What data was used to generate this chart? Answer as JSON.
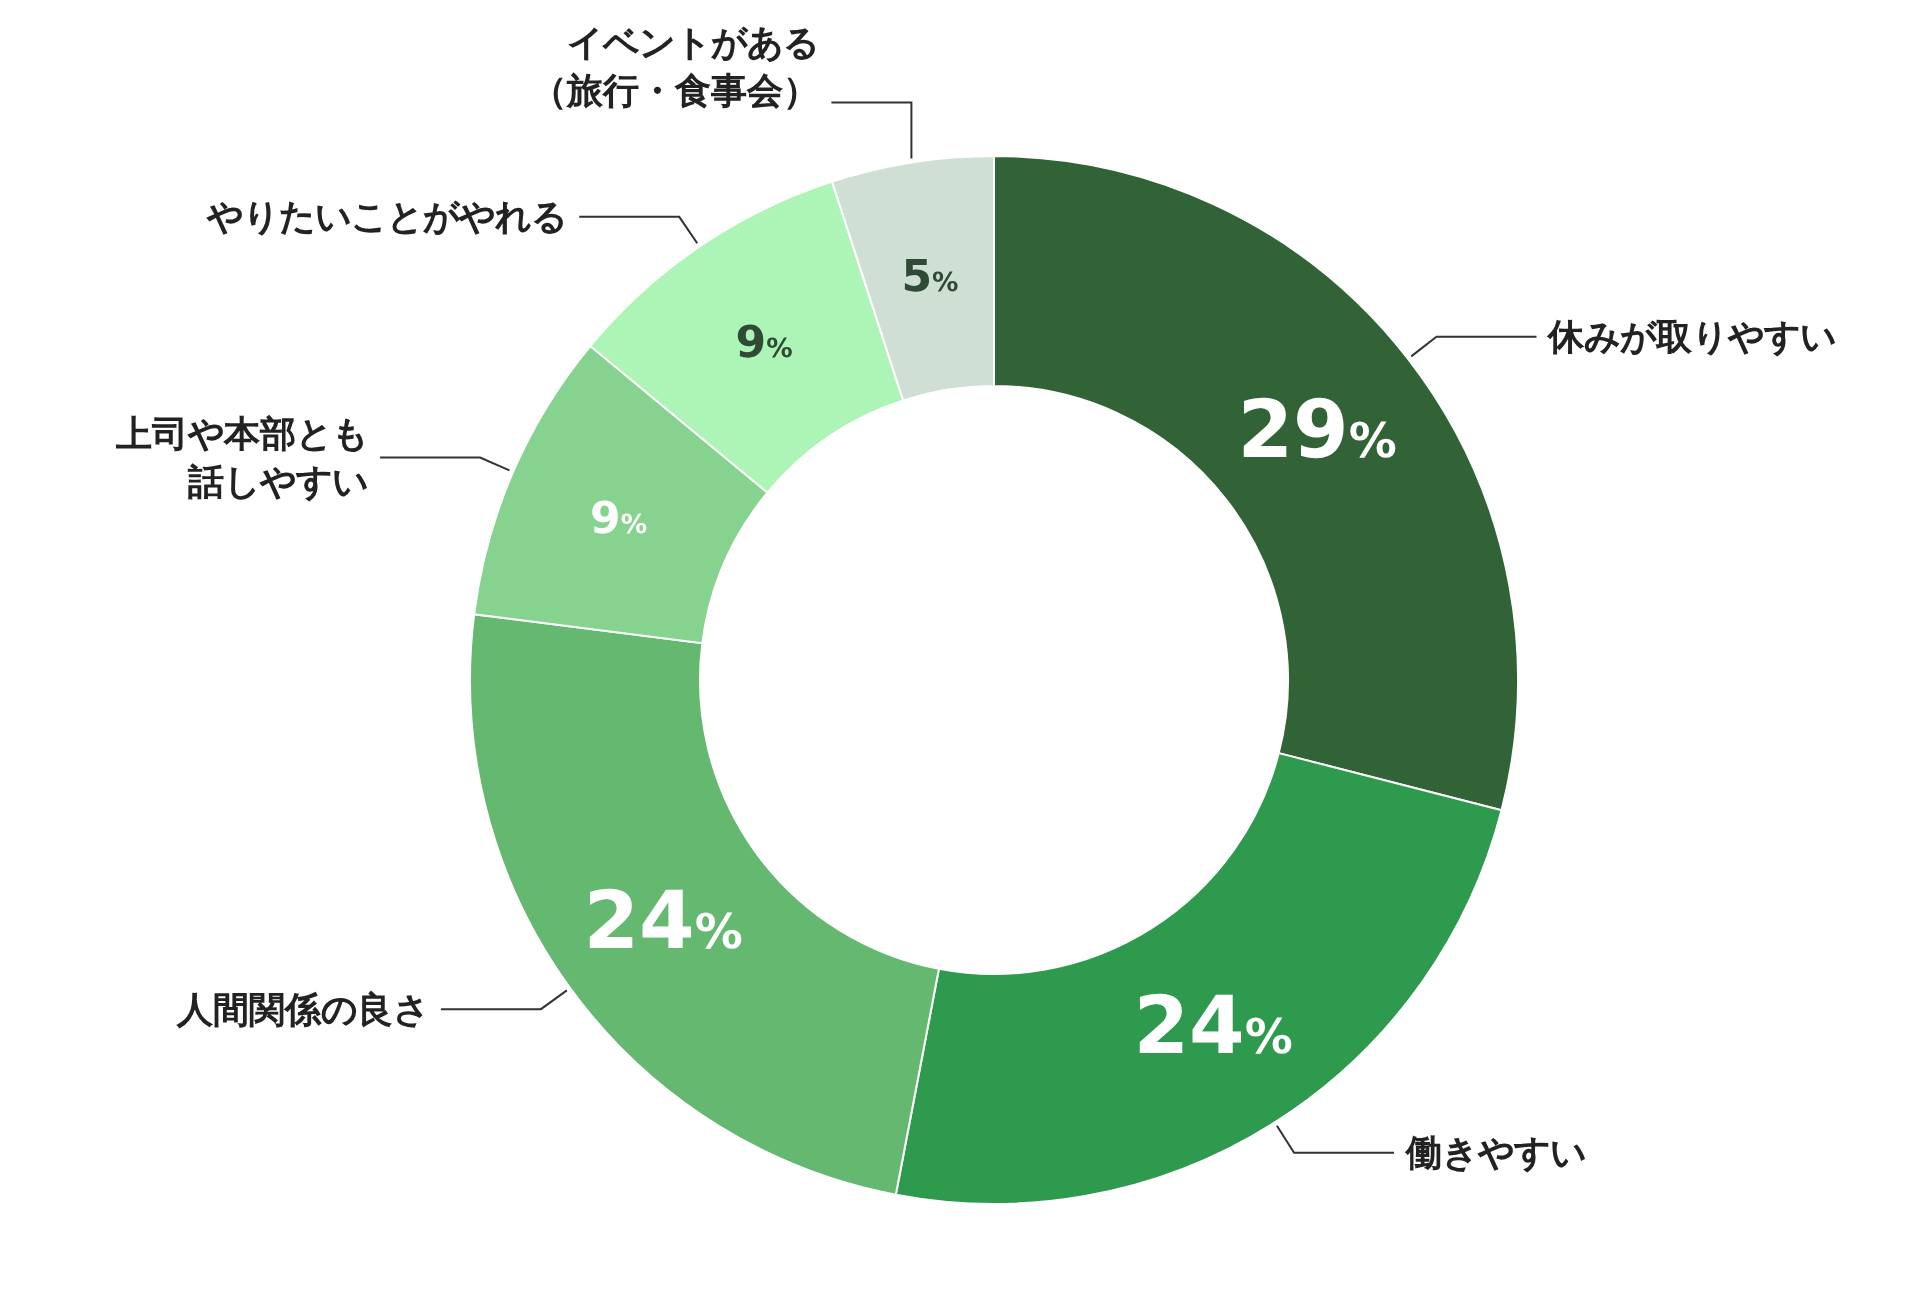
{
  "chart_data": {
    "type": "donut",
    "categories": [
      "休みが取りやすい",
      "働きやすい",
      "人間関係の良さ",
      "上司や本部とも話しやすい",
      "やりたいことがやれる",
      "イベントがある（旅行・食事会）"
    ],
    "values": [
      29,
      24,
      24,
      9,
      9,
      5
    ],
    "value_labels": [
      "29%",
      "24%",
      "24%",
      "9%",
      "9%",
      "5%"
    ],
    "colors": [
      "#316337",
      "#2e9a4e",
      "#64b870",
      "#86d38f",
      "#adf5b6",
      "#d0dfd3"
    ]
  }
}
